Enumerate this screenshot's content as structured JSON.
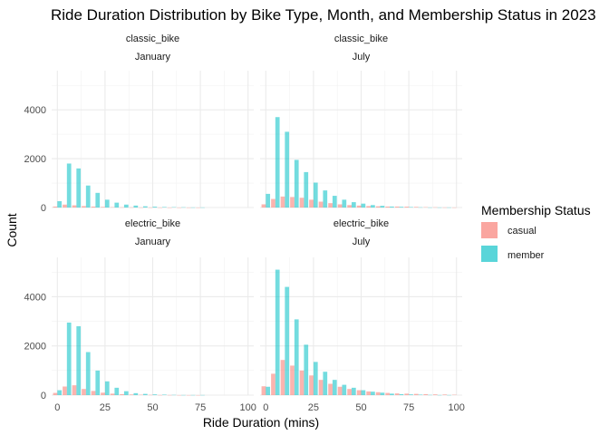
{
  "chart_data": {
    "type": "bar",
    "title": "Ride Duration Distribution by Bike Type, Month, and Membership Status in 2023",
    "xlabel": "Ride Duration (mins)",
    "ylabel": "Count",
    "xlim": [
      -3,
      103
    ],
    "ylim": [
      0,
      5600
    ],
    "x_ticks": [
      0,
      25,
      50,
      75,
      100
    ],
    "y_ticks": [
      0,
      2000,
      4000
    ],
    "bin_width": 5,
    "bar_x": [
      0,
      5,
      10,
      15,
      20,
      25,
      30,
      35,
      40,
      45,
      50,
      55,
      60,
      65,
      70,
      75,
      80,
      85,
      90,
      95,
      100
    ],
    "grid": true,
    "legend": {
      "title": "Membership Status",
      "position": "right",
      "entries": [
        {
          "name": "casual",
          "color": "#F8766D"
        },
        {
          "name": "member",
          "color": "#00BFC4"
        }
      ]
    },
    "panels": [
      {
        "bike_type": "classic_bike",
        "month": "January",
        "series": [
          {
            "name": "casual",
            "values": [
              40,
              120,
              90,
              60,
              40,
              25,
              15,
              10,
              8,
              5,
              4,
              3,
              2,
              2,
              1,
              1,
              0,
              0,
              0,
              0,
              0
            ]
          },
          {
            "name": "member",
            "values": [
              260,
              1800,
              1600,
              900,
              600,
              320,
              200,
              120,
              80,
              50,
              35,
              20,
              15,
              10,
              5,
              5,
              0,
              0,
              0,
              0,
              0
            ]
          }
        ]
      },
      {
        "bike_type": "classic_bike",
        "month": "July",
        "series": [
          {
            "name": "casual",
            "values": [
              130,
              350,
              450,
              430,
              400,
              320,
              240,
              180,
              130,
              100,
              80,
              60,
              50,
              40,
              40,
              35,
              25,
              15,
              10,
              5,
              3
            ]
          },
          {
            "name": "member",
            "values": [
              560,
              3700,
              3100,
              1950,
              1450,
              1020,
              700,
              480,
              320,
              220,
              160,
              100,
              70,
              40,
              30,
              20,
              10,
              5,
              5,
              5,
              0
            ]
          }
        ]
      },
      {
        "bike_type": "electric_bike",
        "month": "January",
        "series": [
          {
            "name": "casual",
            "values": [
              90,
              350,
              400,
              250,
              170,
              100,
              60,
              40,
              25,
              15,
              10,
              5,
              5,
              2,
              2,
              1,
              0,
              0,
              0,
              0,
              0
            ]
          },
          {
            "name": "member",
            "values": [
              200,
              2950,
              2800,
              1750,
              1000,
              560,
              300,
              160,
              80,
              50,
              30,
              20,
              10,
              5,
              5,
              5,
              0,
              0,
              0,
              0,
              0
            ]
          }
        ]
      },
      {
        "bike_type": "electric_bike",
        "month": "July",
        "series": [
          {
            "name": "casual",
            "values": [
              360,
              870,
              1430,
              1200,
              1000,
              800,
              620,
              460,
              340,
              250,
              200,
              150,
              120,
              90,
              70,
              60,
              50,
              40,
              30,
              25,
              15
            ]
          },
          {
            "name": "member",
            "values": [
              340,
              5100,
              4400,
              3080,
              2050,
              1350,
              950,
              620,
              420,
              300,
              200,
              140,
              100,
              60,
              40,
              30,
              20,
              10,
              5,
              5,
              0
            ]
          }
        ]
      }
    ]
  }
}
